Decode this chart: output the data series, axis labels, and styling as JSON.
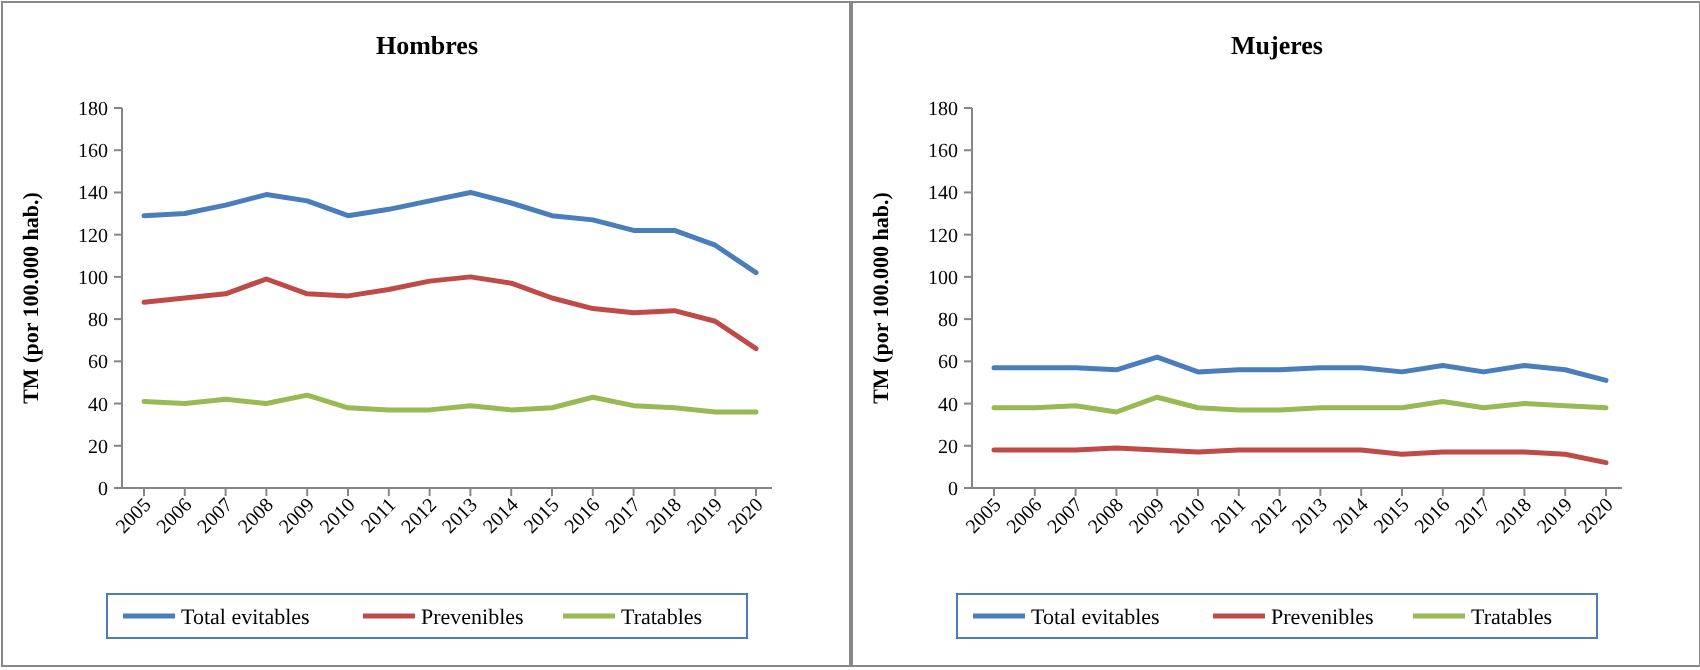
{
  "chart_data": [
    {
      "type": "line",
      "title": "Hombres",
      "ylabel": "TM (por 100.000 hab.)",
      "categories": [
        "2005",
        "2006",
        "2007",
        "2008",
        "2009",
        "2010",
        "2011",
        "2012",
        "2013",
        "2014",
        "2015",
        "2016",
        "2017",
        "2018",
        "2019",
        "2020"
      ],
      "ylim": [
        0,
        180
      ],
      "yticks": [
        0,
        20,
        40,
        60,
        80,
        100,
        120,
        140,
        160,
        180
      ],
      "legend": "bottom",
      "series": [
        {
          "name": "Total evitables",
          "color": "#4a7ebb",
          "values": [
            129,
            130,
            134,
            139,
            136,
            129,
            132,
            136,
            140,
            135,
            129,
            127,
            122,
            122,
            115,
            102
          ]
        },
        {
          "name": "Prevenibles",
          "color": "#be4b48",
          "values": [
            88,
            90,
            92,
            99,
            92,
            91,
            94,
            98,
            100,
            97,
            90,
            85,
            83,
            84,
            79,
            66
          ]
        },
        {
          "name": "Tratables",
          "color": "#98b954",
          "values": [
            41,
            40,
            42,
            40,
            44,
            38,
            37,
            37,
            39,
            37,
            38,
            43,
            39,
            38,
            36,
            36
          ]
        }
      ]
    },
    {
      "type": "line",
      "title": "Mujeres",
      "ylabel": "TM (por 100.000 hab.)",
      "categories": [
        "2005",
        "2006",
        "2007",
        "2008",
        "2009",
        "2010",
        "2011",
        "2012",
        "2013",
        "2014",
        "2015",
        "2016",
        "2017",
        "2018",
        "2019",
        "2020"
      ],
      "ylim": [
        0,
        180
      ],
      "yticks": [
        0,
        20,
        40,
        60,
        80,
        100,
        120,
        140,
        160,
        180
      ],
      "legend": "bottom",
      "series": [
        {
          "name": "Total evitables",
          "color": "#4a7ebb",
          "values": [
            57,
            57,
            57,
            56,
            62,
            55,
            56,
            56,
            57,
            57,
            55,
            58,
            55,
            58,
            56,
            51
          ]
        },
        {
          "name": "Prevenibles",
          "color": "#be4b48",
          "values": [
            18,
            18,
            18,
            19,
            18,
            17,
            18,
            18,
            18,
            18,
            16,
            17,
            17,
            17,
            16,
            12
          ]
        },
        {
          "name": "Tratables",
          "color": "#98b954",
          "values": [
            38,
            38,
            39,
            36,
            43,
            38,
            37,
            37,
            38,
            38,
            38,
            41,
            38,
            40,
            39,
            38
          ]
        }
      ]
    }
  ]
}
